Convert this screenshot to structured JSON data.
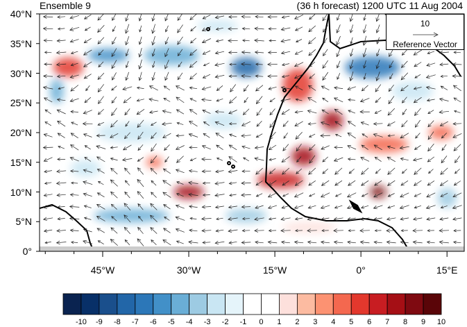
{
  "titles": {
    "left": "Ensemble 9",
    "right": "(36 h forecast) 1200 UTC 11 Aug 2004"
  },
  "axes": {
    "y_labels": [
      "40°N",
      "35°N",
      "30°N",
      "25°N",
      "20°N",
      "15°N",
      "10°N",
      "5°N",
      "0°"
    ],
    "x_labels": [
      "45°W",
      "30°W",
      "15°W",
      "0°",
      "15°E"
    ],
    "lat_range": [
      0,
      40
    ],
    "lon_range": [
      -56,
      18
    ]
  },
  "reference_vector": {
    "magnitude": "10",
    "label": "Reference Vector"
  },
  "colorbar": {
    "labels": [
      "-10",
      "-9",
      "-8",
      "-7",
      "-6",
      "-5",
      "-4",
      "-3",
      "-2",
      "-1",
      "0",
      "1",
      "2",
      "3",
      "4",
      "5",
      "6",
      "7",
      "8",
      "9",
      "10"
    ],
    "colors": [
      "#0a2350",
      "#083068",
      "#1a4f8c",
      "#2266a8",
      "#2c77b8",
      "#4290c8",
      "#6aaed6",
      "#9dcbe3",
      "#c9e6f3",
      "#e5f4fa",
      "#ffffff",
      "#ffffff",
      "#fde0dc",
      "#fcbba1",
      "#fc9272",
      "#f4684f",
      "#e3382d",
      "#c81d22",
      "#a50f15",
      "#7f0a11",
      "#5a0508"
    ]
  },
  "map_features": {
    "shading": "field anomaly",
    "vectors": "wind"
  }
}
